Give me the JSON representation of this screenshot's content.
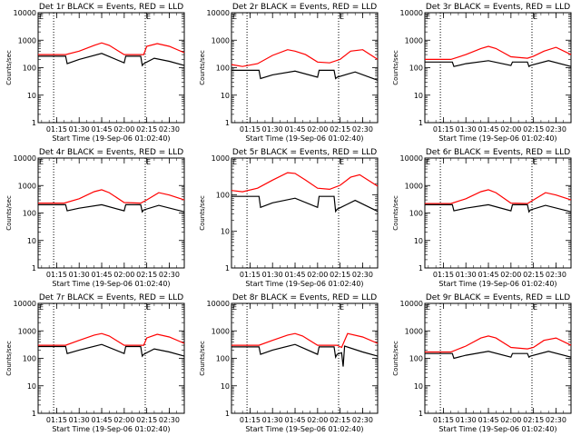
{
  "chart_data": [
    {
      "type": "line",
      "title": "Det 1r BLACK = Events, RED = LLD",
      "xlabel": "Start Time (19-Sep-06 01:02:40)",
      "ylabel": "Counts/sec",
      "y_scale": "log",
      "ylim": [
        1,
        10000
      ],
      "xlim": [
        "01:02:40",
        "02:40:00"
      ],
      "x_ticks": [
        "01:15",
        "01:30",
        "01:45",
        "02:00",
        "02:15",
        "02:30"
      ],
      "y_ticks": [
        "1",
        "10",
        "100",
        "1000",
        "10000"
      ],
      "vlines": [
        "01:13:00",
        "02:14:00"
      ],
      "marker": "E",
      "series": [
        {
          "name": "RED",
          "color": "#ff0000",
          "x": [
            "01:02:40",
            "01:20:00",
            "01:21:00",
            "01:30:00",
            "01:40:00",
            "01:45:00",
            "01:50:00",
            "02:00:00",
            "02:05:00",
            "02:11:00",
            "02:13:00",
            "02:15:00",
            "02:22:00",
            "02:30:00",
            "02:40:00"
          ],
          "values": [
            300,
            300,
            300,
            400,
            650,
            800,
            650,
            300,
            300,
            300,
            300,
            600,
            750,
            600,
            350
          ]
        },
        {
          "name": "BLACK",
          "color": "#000000",
          "x": [
            "01:02:40",
            "01:20:00",
            "01:21:00",
            "01:22:00",
            "01:30:00",
            "01:45:00",
            "02:00:00",
            "02:01:00",
            "02:02:00",
            "02:11:00",
            "02:12:00",
            "02:13:00",
            "02:20:00",
            "02:30:00",
            "02:40:00"
          ],
          "values": [
            260,
            260,
            260,
            140,
            200,
            330,
            150,
            260,
            260,
            260,
            120,
            140,
            220,
            170,
            120
          ]
        }
      ]
    },
    {
      "type": "line",
      "title": "Det 2r BLACK = Events, RED = LLD",
      "xlabel": "Start Time (19-Sep-06 01:02:40)",
      "ylabel": "Counts/sec",
      "y_scale": "log",
      "ylim": [
        1,
        10000
      ],
      "xlim": [
        "01:02:40",
        "02:40:00"
      ],
      "x_ticks": [
        "01:15",
        "01:30",
        "01:45",
        "02:00",
        "02:15",
        "02:30"
      ],
      "y_ticks": [
        "1",
        "10",
        "100",
        "1000",
        "10000"
      ],
      "vlines": [
        "01:13:00",
        "02:14:00"
      ],
      "marker": "E",
      "series": [
        {
          "name": "RED",
          "color": "#ff0000",
          "x": [
            "01:02:40",
            "01:10:00",
            "01:20:00",
            "01:30:00",
            "01:40:00",
            "01:45:00",
            "01:52:00",
            "02:00:00",
            "02:08:00",
            "02:15:00",
            "02:22:00",
            "02:30:00",
            "02:40:00"
          ],
          "values": [
            130,
            110,
            140,
            280,
            450,
            400,
            300,
            160,
            150,
            200,
            400,
            450,
            200
          ]
        },
        {
          "name": "BLACK",
          "color": "#000000",
          "x": [
            "01:02:40",
            "01:20:00",
            "01:21:00",
            "01:22:00",
            "01:30:00",
            "01:45:00",
            "02:00:00",
            "02:01:00",
            "02:02:00",
            "02:11:00",
            "02:12:00",
            "02:13:00",
            "02:25:00",
            "02:40:00"
          ],
          "values": [
            80,
            80,
            80,
            40,
            55,
            75,
            45,
            80,
            80,
            80,
            40,
            45,
            70,
            35
          ]
        }
      ]
    },
    {
      "type": "line",
      "title": "Det 3r BLACK = Events, RED = LLD",
      "xlabel": "Start Time (19-Sep-06 01:02:40)",
      "ylabel": "Counts/sec",
      "y_scale": "log",
      "ylim": [
        1,
        10000
      ],
      "xlim": [
        "01:02:40",
        "02:40:00"
      ],
      "x_ticks": [
        "01:15",
        "01:30",
        "01:45",
        "02:00",
        "02:15",
        "02:30"
      ],
      "y_ticks": [
        "1",
        "10",
        "100",
        "1000",
        "10000"
      ],
      "vlines": [
        "01:13:00",
        "02:14:00"
      ],
      "marker": "E",
      "series": [
        {
          "name": "RED",
          "color": "#ff0000",
          "x": [
            "01:02:40",
            "01:20:00",
            "01:30:00",
            "01:40:00",
            "01:45:00",
            "01:50:00",
            "02:00:00",
            "02:11:00",
            "02:15:00",
            "02:22:00",
            "02:30:00",
            "02:40:00"
          ],
          "values": [
            200,
            200,
            300,
            500,
            600,
            500,
            250,
            220,
            260,
            400,
            550,
            300
          ]
        },
        {
          "name": "BLACK",
          "color": "#000000",
          "x": [
            "01:02:40",
            "01:20:00",
            "01:21:00",
            "01:22:00",
            "01:30:00",
            "01:45:00",
            "02:00:00",
            "02:01:00",
            "02:02:00",
            "02:11:00",
            "02:12:00",
            "02:13:00",
            "02:25:00",
            "02:40:00"
          ],
          "values": [
            160,
            160,
            160,
            110,
            140,
            180,
            120,
            160,
            160,
            160,
            110,
            120,
            180,
            110
          ]
        }
      ]
    },
    {
      "type": "line",
      "title": "Det 4r BLACK = Events, RED = LLD",
      "xlabel": "Start Time (19-Sep-06 01:02:40)",
      "ylabel": "Counts/sec",
      "y_scale": "log",
      "ylim": [
        1,
        10000
      ],
      "xlim": [
        "01:02:40",
        "02:40:00"
      ],
      "x_ticks": [
        "01:15",
        "01:30",
        "01:45",
        "02:00",
        "02:15",
        "02:30"
      ],
      "y_ticks": [
        "1",
        "10",
        "100",
        "1000",
        "10000"
      ],
      "vlines": [
        "01:13:00",
        "02:14:00"
      ],
      "marker": "E",
      "series": [
        {
          "name": "RED",
          "color": "#ff0000",
          "x": [
            "01:02:40",
            "01:20:00",
            "01:30:00",
            "01:40:00",
            "01:45:00",
            "01:50:00",
            "02:00:00",
            "02:11:00",
            "02:15:00",
            "02:23:00",
            "02:30:00",
            "02:40:00"
          ],
          "values": [
            230,
            230,
            330,
            600,
            700,
            550,
            240,
            230,
            300,
            550,
            450,
            300
          ]
        },
        {
          "name": "BLACK",
          "color": "#000000",
          "x": [
            "01:02:40",
            "01:20:00",
            "01:21:00",
            "01:22:00",
            "01:30:00",
            "01:45:00",
            "02:00:00",
            "02:01:00",
            "02:02:00",
            "02:11:00",
            "02:12:00",
            "02:13:00",
            "02:23:00",
            "02:40:00"
          ],
          "values": [
            200,
            200,
            200,
            120,
            150,
            200,
            120,
            200,
            200,
            200,
            110,
            130,
            190,
            110
          ]
        }
      ]
    },
    {
      "type": "line",
      "title": "Det 5r BLACK = Events, RED = LLD",
      "xlabel": "Start Time (19-Sep-06 01:02:40)",
      "ylabel": "Counts/sec",
      "y_scale": "log",
      "ylim": [
        1,
        1000
      ],
      "xlim": [
        "01:02:40",
        "02:40:00"
      ],
      "x_ticks": [
        "01:15",
        "01:30",
        "01:45",
        "02:00",
        "02:15",
        "02:30"
      ],
      "y_ticks": [
        "1",
        "10",
        "100",
        "1000"
      ],
      "vlines": [
        "01:13:00",
        "02:14:00"
      ],
      "marker": "E",
      "series": [
        {
          "name": "RED",
          "color": "#ff0000",
          "x": [
            "01:02:40",
            "01:10:00",
            "01:20:00",
            "01:30:00",
            "01:40:00",
            "01:45:00",
            "01:52:00",
            "02:00:00",
            "02:08:00",
            "02:15:00",
            "02:22:00",
            "02:28:00",
            "02:40:00"
          ],
          "values": [
            130,
            120,
            150,
            250,
            400,
            380,
            250,
            150,
            140,
            180,
            300,
            350,
            170
          ]
        },
        {
          "name": "BLACK",
          "color": "#000000",
          "x": [
            "01:02:40",
            "01:20:00",
            "01:21:00",
            "01:22:00",
            "01:30:00",
            "01:45:00",
            "02:00:00",
            "02:01:00",
            "02:02:00",
            "02:11:00",
            "02:12:00",
            "02:13:00",
            "02:25:00",
            "02:40:00"
          ],
          "values": [
            90,
            90,
            90,
            45,
            60,
            80,
            45,
            90,
            90,
            90,
            35,
            40,
            70,
            35
          ]
        }
      ]
    },
    {
      "type": "line",
      "title": "Det 6r BLACK = Events, RED = LLD",
      "xlabel": "Start Time (19-Sep-06 01:02:40)",
      "ylabel": "Counts/sec",
      "y_scale": "log",
      "ylim": [
        1,
        10000
      ],
      "xlim": [
        "01:02:40",
        "02:40:00"
      ],
      "x_ticks": [
        "01:15",
        "01:30",
        "01:45",
        "02:00",
        "02:15",
        "02:30"
      ],
      "y_ticks": [
        "1",
        "10",
        "100",
        "1000",
        "10000"
      ],
      "vlines": [
        "01:13:00",
        "02:14:00"
      ],
      "marker": "E",
      "series": [
        {
          "name": "RED",
          "color": "#ff0000",
          "x": [
            "01:02:40",
            "01:20:00",
            "01:30:00",
            "01:40:00",
            "01:45:00",
            "01:50:00",
            "02:00:00",
            "02:11:00",
            "02:15:00",
            "02:23:00",
            "02:30:00",
            "02:40:00"
          ],
          "values": [
            220,
            220,
            330,
            600,
            700,
            550,
            230,
            220,
            300,
            550,
            450,
            300
          ]
        },
        {
          "name": "BLACK",
          "color": "#000000",
          "x": [
            "01:02:40",
            "01:20:00",
            "01:21:00",
            "01:22:00",
            "01:30:00",
            "01:45:00",
            "02:00:00",
            "02:01:00",
            "02:02:00",
            "02:11:00",
            "02:12:00",
            "02:13:00",
            "02:23:00",
            "02:40:00"
          ],
          "values": [
            200,
            200,
            200,
            120,
            150,
            200,
            120,
            200,
            200,
            200,
            110,
            130,
            190,
            110
          ]
        }
      ]
    },
    {
      "type": "line",
      "title": "Det 7r BLACK = Events, RED = LLD",
      "xlabel": "Start Time (19-Sep-06 01:02:40)",
      "ylabel": "Counts/sec",
      "y_scale": "log",
      "ylim": [
        1,
        10000
      ],
      "xlim": [
        "01:02:40",
        "02:40:00"
      ],
      "x_ticks": [
        "01:15",
        "01:30",
        "01:45",
        "02:00",
        "02:15",
        "02:30"
      ],
      "y_ticks": [
        "1",
        "10",
        "100",
        "1000",
        "10000"
      ],
      "vlines": [
        "01:13:00",
        "02:14:00"
      ],
      "marker": "E",
      "series": [
        {
          "name": "RED",
          "color": "#ff0000",
          "x": [
            "01:02:40",
            "01:20:00",
            "01:21:00",
            "01:30:00",
            "01:40:00",
            "01:45:00",
            "01:50:00",
            "02:00:00",
            "02:05:00",
            "02:11:00",
            "02:13:00",
            "02:15:00",
            "02:22:00",
            "02:30:00",
            "02:40:00"
          ],
          "values": [
            300,
            300,
            300,
            450,
            700,
            800,
            650,
            300,
            300,
            300,
            300,
            550,
            750,
            600,
            350
          ]
        },
        {
          "name": "BLACK",
          "color": "#000000",
          "x": [
            "01:02:40",
            "01:20:00",
            "01:21:00",
            "01:22:00",
            "01:30:00",
            "01:45:00",
            "02:00:00",
            "02:01:00",
            "02:02:00",
            "02:11:00",
            "02:12:00",
            "02:13:00",
            "02:20:00",
            "02:30:00",
            "02:40:00"
          ],
          "values": [
            270,
            270,
            270,
            150,
            200,
            320,
            150,
            270,
            270,
            270,
            120,
            140,
            220,
            170,
            120
          ]
        }
      ]
    },
    {
      "type": "line",
      "title": "Det 8r BLACK = Events, RED = LLD",
      "xlabel": "Start Time (19-Sep-06 01:02:40)",
      "ylabel": "Counts/sec",
      "y_scale": "log",
      "ylim": [
        1,
        10000
      ],
      "xlim": [
        "01:02:40",
        "02:40:00"
      ],
      "x_ticks": [
        "01:15",
        "01:30",
        "01:45",
        "02:00",
        "02:15",
        "02:30"
      ],
      "y_ticks": [
        "1",
        "10",
        "100",
        "1000",
        "10000"
      ],
      "vlines": [
        "01:13:00",
        "02:14:00"
      ],
      "marker": "E",
      "series": [
        {
          "name": "RED",
          "color": "#ff0000",
          "x": [
            "01:02:40",
            "01:20:00",
            "01:21:00",
            "01:30:00",
            "01:40:00",
            "01:45:00",
            "01:50:00",
            "02:00:00",
            "02:05:00",
            "02:11:00",
            "02:13:00",
            "02:16:00",
            "02:20:00",
            "02:30:00",
            "02:40:00"
          ],
          "values": [
            300,
            300,
            300,
            450,
            700,
            800,
            650,
            300,
            300,
            300,
            300,
            250,
            800,
            600,
            350
          ]
        },
        {
          "name": "BLACK",
          "color": "#000000",
          "x": [
            "01:02:40",
            "01:20:00",
            "01:21:00",
            "01:22:00",
            "01:30:00",
            "01:45:00",
            "02:00:00",
            "02:01:00",
            "02:02:00",
            "02:11:00",
            "02:12:00",
            "02:13:00",
            "02:16:00",
            "02:17:00",
            "02:18:00",
            "02:30:00",
            "02:40:00"
          ],
          "values": [
            260,
            260,
            260,
            140,
            200,
            320,
            140,
            260,
            260,
            260,
            110,
            140,
            160,
            50,
            280,
            170,
            120
          ]
        }
      ]
    },
    {
      "type": "line",
      "title": "Det 9r BLACK = Events, RED = LLD",
      "xlabel": "Start Time (19-Sep-06 01:02:40)",
      "ylabel": "Counts/sec",
      "y_scale": "log",
      "ylim": [
        1,
        10000
      ],
      "xlim": [
        "01:02:40",
        "02:40:00"
      ],
      "x_ticks": [
        "01:15",
        "01:30",
        "01:45",
        "02:00",
        "02:15",
        "02:30"
      ],
      "y_ticks": [
        "1",
        "10",
        "100",
        "1000",
        "10000"
      ],
      "vlines": [
        "01:13:00",
        "02:14:00"
      ],
      "marker": "E",
      "series": [
        {
          "name": "RED",
          "color": "#ff0000",
          "x": [
            "01:02:40",
            "01:20:00",
            "01:30:00",
            "01:40:00",
            "01:45:00",
            "01:50:00",
            "02:00:00",
            "02:11:00",
            "02:15:00",
            "02:22:00",
            "02:30:00",
            "02:40:00"
          ],
          "values": [
            170,
            170,
            280,
            550,
            650,
            550,
            250,
            220,
            250,
            450,
            550,
            300
          ]
        },
        {
          "name": "BLACK",
          "color": "#000000",
          "x": [
            "01:02:40",
            "01:20:00",
            "01:21:00",
            "01:22:00",
            "01:30:00",
            "01:45:00",
            "02:00:00",
            "02:01:00",
            "02:02:00",
            "02:11:00",
            "02:12:00",
            "02:13:00",
            "02:25:00",
            "02:40:00"
          ],
          "values": [
            150,
            150,
            150,
            100,
            130,
            180,
            110,
            150,
            150,
            150,
            110,
            120,
            180,
            110
          ]
        }
      ]
    }
  ]
}
